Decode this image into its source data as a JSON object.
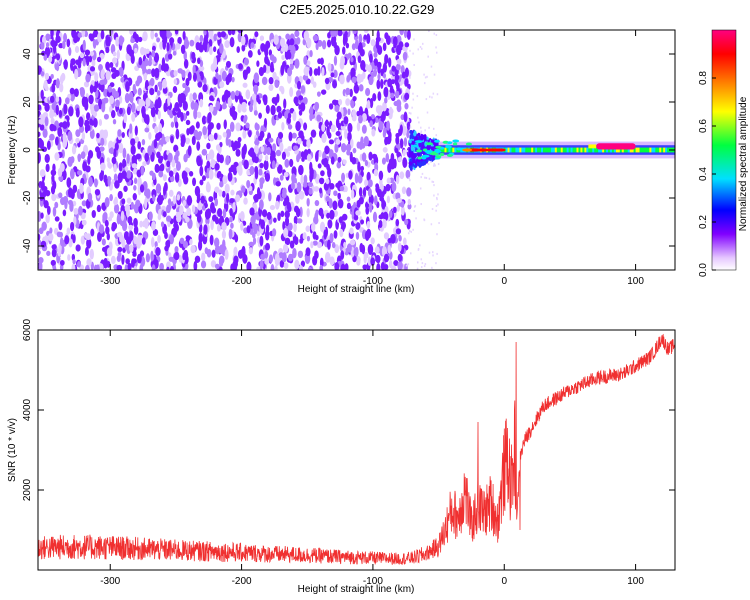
{
  "page": {
    "title": "C2E5.2025.010.10.22.G29"
  },
  "chart_data": [
    {
      "type": "heatmap",
      "xlabel": "Height of straight line (km)",
      "ylabel": "Frequency (Hz)",
      "xlim": [
        -355,
        130
      ],
      "ylim": [
        -50,
        50
      ],
      "xticks": [
        -300,
        -200,
        -100,
        0,
        100
      ],
      "yticks": [
        -40,
        -20,
        0,
        20,
        40
      ],
      "colorbar": {
        "label": "Normalized spectral amplitude",
        "range": [
          0,
          1
        ],
        "ticks": [
          0.0,
          0.2,
          0.4,
          0.6,
          0.8
        ],
        "colors": [
          "#ffffff",
          "#e6c8ff",
          "#8000ff",
          "#0000ff",
          "#00e0ff",
          "#00ff40",
          "#ffff00",
          "#ff8000",
          "#ff0000",
          "#ff0080"
        ]
      },
      "regions": [
        {
          "x_range": [
            -355,
            -72
          ],
          "freq_range": [
            -50,
            50
          ],
          "amplitude": 0.1,
          "pattern": "broadband noise"
        },
        {
          "x_range": [
            -72,
            -50
          ],
          "freq_range": [
            -8,
            8
          ],
          "amplitude": 0.3,
          "pattern": "transition"
        },
        {
          "x_range": [
            -50,
            130
          ],
          "center_freq": 0,
          "bandwidth": 3,
          "amplitude": 0.55,
          "pattern": "narrow tone"
        },
        {
          "x_range": [
            -30,
            0
          ],
          "center_freq": 0,
          "amplitude": 0.9,
          "pattern": "strong peaks"
        },
        {
          "x_range": [
            70,
            100
          ],
          "center_freq": 1.5,
          "amplitude": 0.95,
          "pattern": "strong band"
        }
      ]
    },
    {
      "type": "line",
      "xlabel": "Height of straight line (km)",
      "ylabel": "SNR (10 * v/v)",
      "xlim": [
        -355,
        130
      ],
      "ylim": [
        0,
        6000
      ],
      "xticks": [
        -300,
        -200,
        -100,
        0,
        100
      ],
      "yticks": [
        2000,
        4000,
        6000
      ],
      "color": "#f03030",
      "series": [
        {
          "x": [
            -355,
            -330,
            -300,
            -270,
            -240,
            -210,
            -180,
            -150,
            -120,
            -100,
            -80,
            -70,
            -60,
            -50,
            -45,
            -40,
            -35,
            -30,
            -25,
            -20,
            -15,
            -10,
            -5,
            0,
            3,
            5,
            8,
            10,
            12,
            15,
            20,
            25,
            30,
            40,
            50,
            60,
            70,
            80,
            90,
            100,
            110,
            115,
            120,
            125,
            130
          ],
          "y": [
            550,
            580,
            560,
            520,
            480,
            450,
            400,
            370,
            320,
            300,
            280,
            300,
            400,
            600,
            1000,
            1500,
            1300,
            2000,
            1100,
            1600,
            1400,
            1700,
            1200,
            2500,
            2800,
            2000,
            3000,
            1500,
            2800,
            3200,
            3500,
            3800,
            4100,
            4300,
            4500,
            4650,
            4800,
            4850,
            4900,
            5100,
            5300,
            5500,
            5800,
            5500,
            5650
          ]
        }
      ],
      "spikes": [
        {
          "x": 9,
          "y": 5700
        },
        {
          "x": -20,
          "y": 3700
        },
        {
          "x": 12,
          "y": 1000
        }
      ]
    }
  ]
}
